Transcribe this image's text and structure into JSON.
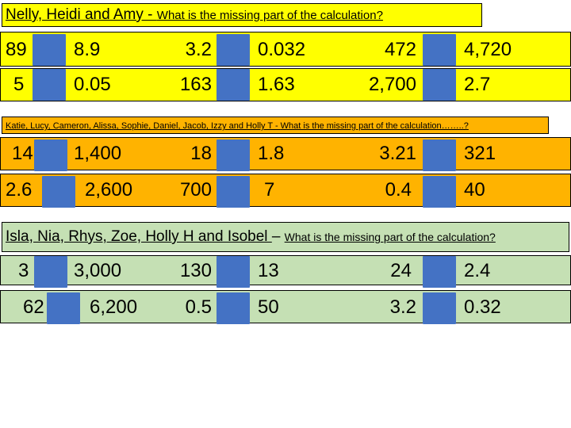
{
  "colors": {
    "yellow": "#ffff00",
    "orange": "#ffb300",
    "green": "#c5e0b4",
    "blue_box": "#4472c4"
  },
  "section1": {
    "title_names": "Nelly, Heidi and Amy - ",
    "title_question": "What is the missing part of the calculation?",
    "rows": [
      [
        {
          "start": "89",
          "end": "8.9"
        },
        {
          "start": "3.2",
          "end": "0.032"
        },
        {
          "start": "472",
          "end": "4,720"
        }
      ],
      [
        {
          "start": "5",
          "end": "0.05"
        },
        {
          "start": "163",
          "end": "1.63"
        },
        {
          "start": "2,700",
          "end": "2.7"
        }
      ]
    ]
  },
  "section2": {
    "title_names": "Katie, Lucy, Cameron, Alissa, Sophie, Daniel, Jacob, Izzy and Holly T - ",
    "title_question": "What is the missing part of the calculation……..?",
    "rows": [
      [
        {
          "start": "14",
          "end": "1,400"
        },
        {
          "start": "18",
          "end": "1.8"
        },
        {
          "start": "3.21",
          "end": "321"
        }
      ],
      [
        {
          "start": "2.6",
          "end": "2,600"
        },
        {
          "start": "700",
          "end": "7"
        },
        {
          "start": "0.4",
          "end": "40"
        }
      ]
    ]
  },
  "section3": {
    "title_names": "Isla, Nia, Rhys, Zoe, Holly H and Isobel ",
    "title_dash": "– ",
    "title_question": "What is the missing part of the calculation?",
    "rows": [
      [
        {
          "start": "3",
          "end": "3,000"
        },
        {
          "start": "130",
          "end": "13"
        },
        {
          "start": "24",
          "end": "2.4"
        }
      ],
      [
        {
          "start": "62",
          "end": "6,200"
        },
        {
          "start": "0.5",
          "end": "50"
        },
        {
          "start": "3.2",
          "end": "0.32"
        }
      ]
    ]
  }
}
